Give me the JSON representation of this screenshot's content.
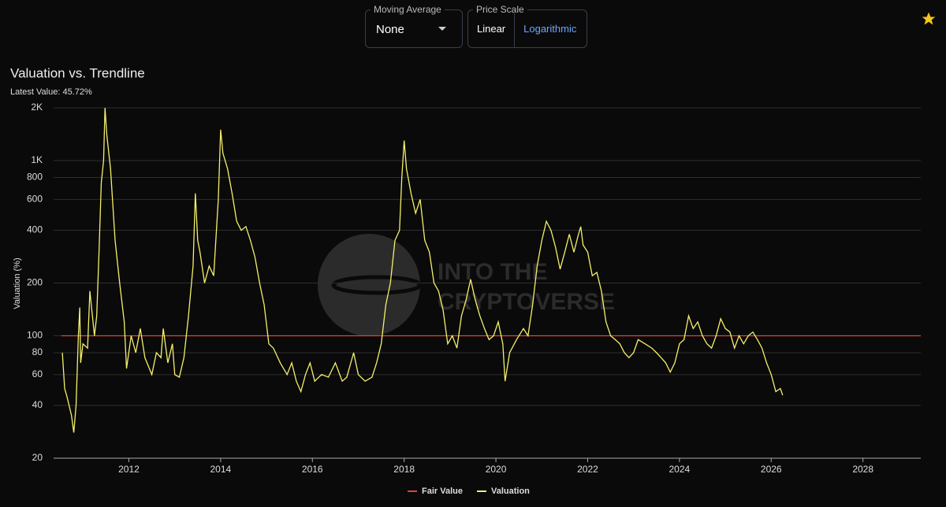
{
  "controls": {
    "moving_average": {
      "label": "Moving Average",
      "value": "None"
    },
    "price_scale": {
      "label": "Price Scale",
      "options": [
        "Linear",
        "Logarithmic"
      ],
      "selected": "Logarithmic"
    }
  },
  "watermark": [
    "INTO THE",
    "CRYPTOVERSE"
  ],
  "chart_data": {
    "type": "line",
    "title": "Valuation vs. Trendline",
    "subtitle": "Latest Value: 45.72%",
    "y_label": "Valuation (%)",
    "log_scale": true,
    "grid": true,
    "legend": "bottom",
    "xlim": [
      2010.36,
      2029.26
    ],
    "xticks": [
      2012,
      2014,
      2016,
      2018,
      2020,
      2022,
      2024,
      2026,
      2028
    ],
    "ylim": [
      20,
      2000
    ],
    "yticks": [
      20,
      40,
      60,
      80,
      100,
      200,
      400,
      600,
      800,
      {
        "value": 1000,
        "label": "1K"
      },
      {
        "value": 2000,
        "label": "2K"
      }
    ],
    "series": [
      {
        "name": "Fair Value",
        "color": "#e0443a",
        "x": [
          2010.53,
          2029.26
        ],
        "values": [
          100,
          100
        ]
      },
      {
        "name": "Valuation",
        "color": "#f5f06a",
        "x": [
          2010.55,
          2010.6,
          2010.65,
          2010.75,
          2010.8,
          2010.85,
          2010.9,
          2010.93,
          2010.95,
          2011.0,
          2011.1,
          2011.15,
          2011.25,
          2011.3,
          2011.35,
          2011.4,
          2011.45,
          2011.48,
          2011.52,
          2011.6,
          2011.7,
          2011.8,
          2011.9,
          2011.95,
          2012.05,
          2012.15,
          2012.25,
          2012.35,
          2012.5,
          2012.6,
          2012.7,
          2012.75,
          2012.85,
          2012.95,
          2013.0,
          2013.1,
          2013.2,
          2013.3,
          2013.4,
          2013.45,
          2013.5,
          2013.55,
          2013.65,
          2013.75,
          2013.85,
          2013.95,
          2014.0,
          2014.05,
          2014.15,
          2014.25,
          2014.35,
          2014.45,
          2014.55,
          2014.65,
          2014.75,
          2014.85,
          2014.95,
          2015.05,
          2015.15,
          2015.3,
          2015.45,
          2015.55,
          2015.65,
          2015.75,
          2015.85,
          2015.95,
          2016.05,
          2016.2,
          2016.35,
          2016.5,
          2016.65,
          2016.75,
          2016.9,
          2017.0,
          2017.15,
          2017.3,
          2017.4,
          2017.5,
          2017.6,
          2017.7,
          2017.8,
          2017.9,
          2017.95,
          2018.0,
          2018.05,
          2018.15,
          2018.25,
          2018.35,
          2018.45,
          2018.55,
          2018.65,
          2018.75,
          2018.85,
          2018.95,
          2019.05,
          2019.15,
          2019.25,
          2019.35,
          2019.45,
          2019.55,
          2019.65,
          2019.75,
          2019.85,
          2019.95,
          2020.05,
          2020.15,
          2020.2,
          2020.3,
          2020.45,
          2020.6,
          2020.7,
          2020.8,
          2020.9,
          2021.0,
          2021.1,
          2021.2,
          2021.3,
          2021.4,
          2021.5,
          2021.6,
          2021.7,
          2021.8,
          2021.85,
          2021.9,
          2022.0,
          2022.1,
          2022.2,
          2022.3,
          2022.4,
          2022.5,
          2022.6,
          2022.7,
          2022.8,
          2022.9,
          2023.0,
          2023.1,
          2023.25,
          2023.4,
          2023.5,
          2023.6,
          2023.7,
          2023.8,
          2023.9,
          2024.0,
          2024.1,
          2024.2,
          2024.3,
          2024.4,
          2024.5,
          2024.6,
          2024.7,
          2024.8,
          2024.9,
          2025.0,
          2025.1,
          2025.2,
          2025.3,
          2025.4,
          2025.5,
          2025.6,
          2025.7,
          2025.8,
          2025.9,
          2026.0,
          2026.1,
          2026.2,
          2026.25
        ],
        "values": [
          80,
          50,
          45,
          35,
          28,
          40,
          100,
          145,
          70,
          90,
          85,
          180,
          100,
          130,
          300,
          750,
          1000,
          2000,
          1400,
          900,
          350,
          200,
          120,
          65,
          100,
          80,
          110,
          75,
          60,
          80,
          75,
          110,
          70,
          90,
          60,
          58,
          75,
          130,
          250,
          650,
          350,
          300,
          200,
          250,
          220,
          600,
          1500,
          1100,
          900,
          650,
          450,
          400,
          420,
          350,
          280,
          200,
          150,
          90,
          85,
          70,
          60,
          70,
          55,
          48,
          60,
          70,
          55,
          60,
          58,
          70,
          55,
          58,
          80,
          60,
          55,
          58,
          70,
          90,
          150,
          200,
          350,
          400,
          800,
          1300,
          900,
          650,
          500,
          600,
          350,
          300,
          200,
          180,
          140,
          90,
          100,
          85,
          130,
          160,
          210,
          160,
          130,
          110,
          95,
          100,
          120,
          90,
          55,
          80,
          95,
          110,
          100,
          150,
          250,
          350,
          450,
          400,
          320,
          240,
          300,
          380,
          300,
          380,
          420,
          330,
          300,
          220,
          230,
          180,
          120,
          100,
          95,
          90,
          80,
          75,
          80,
          95,
          90,
          85,
          80,
          75,
          70,
          62,
          70,
          90,
          95,
          130,
          110,
          120,
          100,
          90,
          85,
          100,
          125,
          110,
          105,
          85,
          100,
          90,
          100,
          105,
          95,
          85,
          70,
          60,
          48,
          50,
          45.72
        ]
      }
    ]
  }
}
